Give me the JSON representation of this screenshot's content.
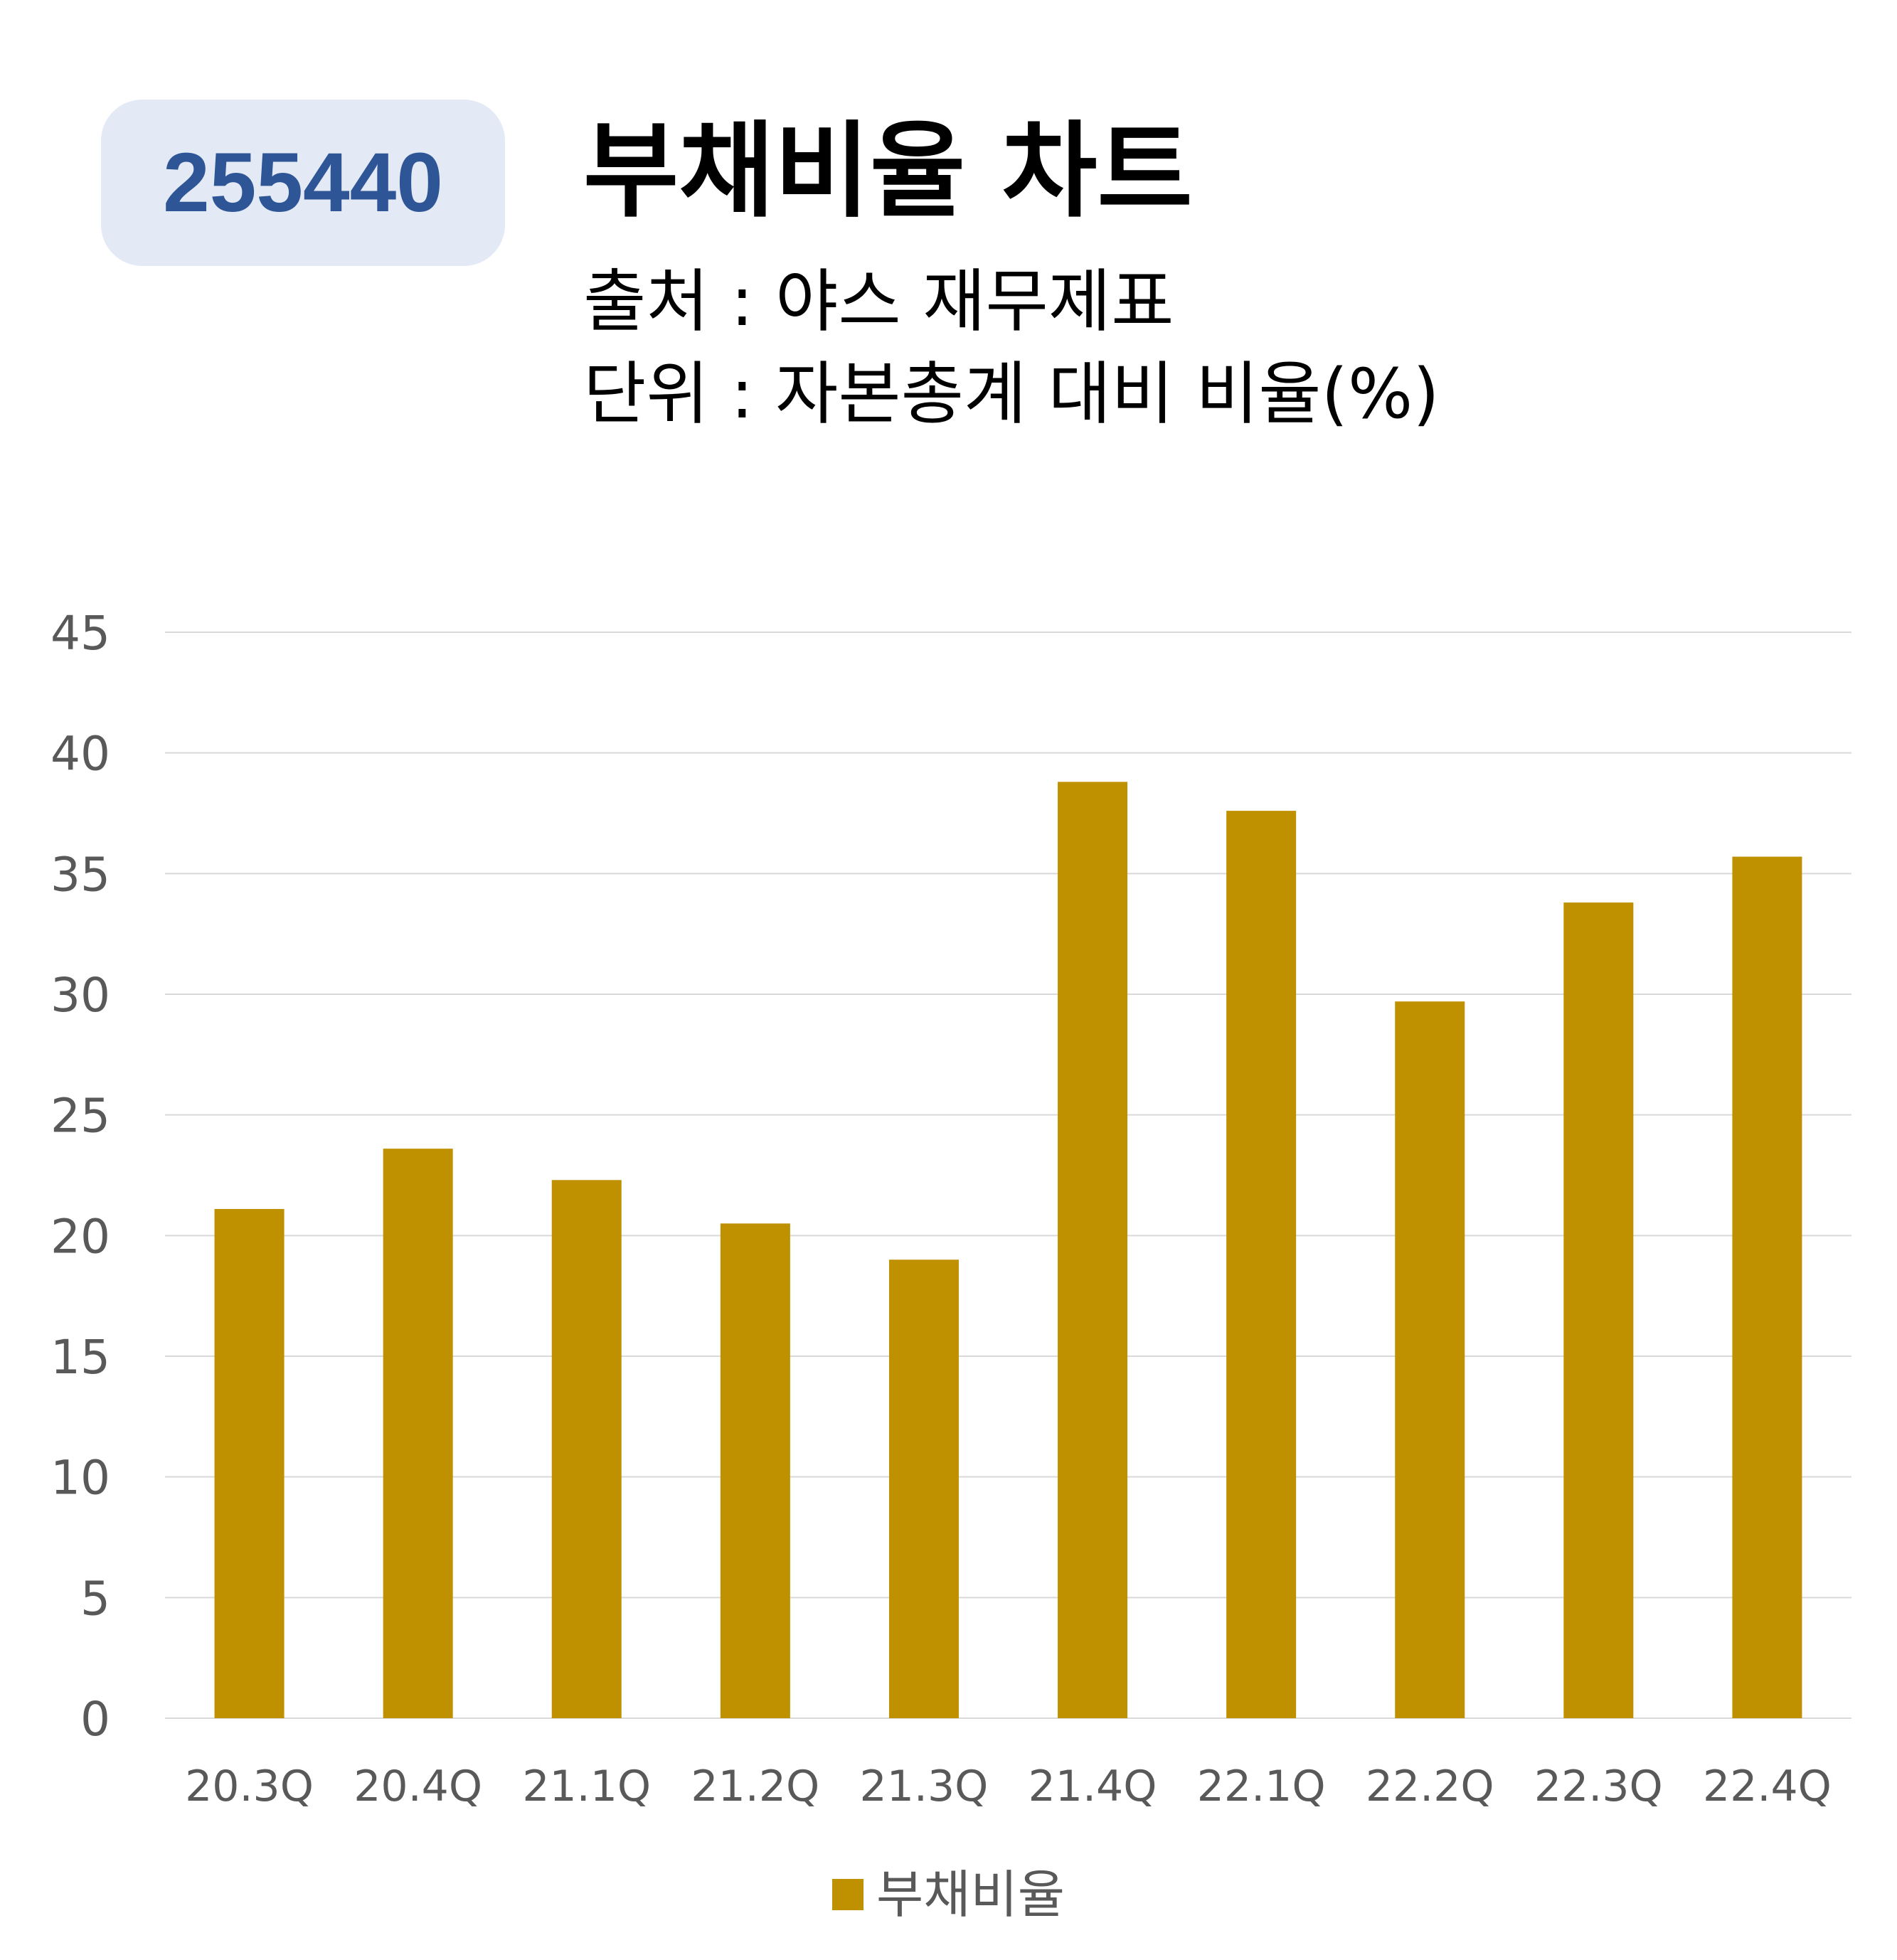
{
  "header": {
    "code": "255440",
    "title": "부채비율 차트",
    "source": "출처 : 야스 재무제표",
    "unit": "단위 : 자본총계 대비 비율(%)"
  },
  "colors": {
    "bar": "#bf9000",
    "badge_bg": "#e3e9f5",
    "badge_text": "#2e5596",
    "grid": "#d9d9d9",
    "tick_text": "#595959"
  },
  "chart_data": {
    "type": "bar",
    "categories": [
      "20.3Q",
      "20.4Q",
      "21.1Q",
      "21.2Q",
      "21.3Q",
      "21.4Q",
      "22.1Q",
      "22.2Q",
      "22.3Q",
      "22.4Q"
    ],
    "series": [
      {
        "name": "부채비율",
        "values": [
          21.1,
          23.6,
          22.3,
          20.5,
          19.0,
          38.8,
          37.6,
          29.7,
          33.8,
          35.7
        ]
      }
    ],
    "ylim": [
      0,
      45
    ],
    "yticks": [
      0,
      5,
      10,
      15,
      20,
      25,
      30,
      35,
      40,
      45
    ],
    "grid": true,
    "legend_position": "bottom"
  }
}
